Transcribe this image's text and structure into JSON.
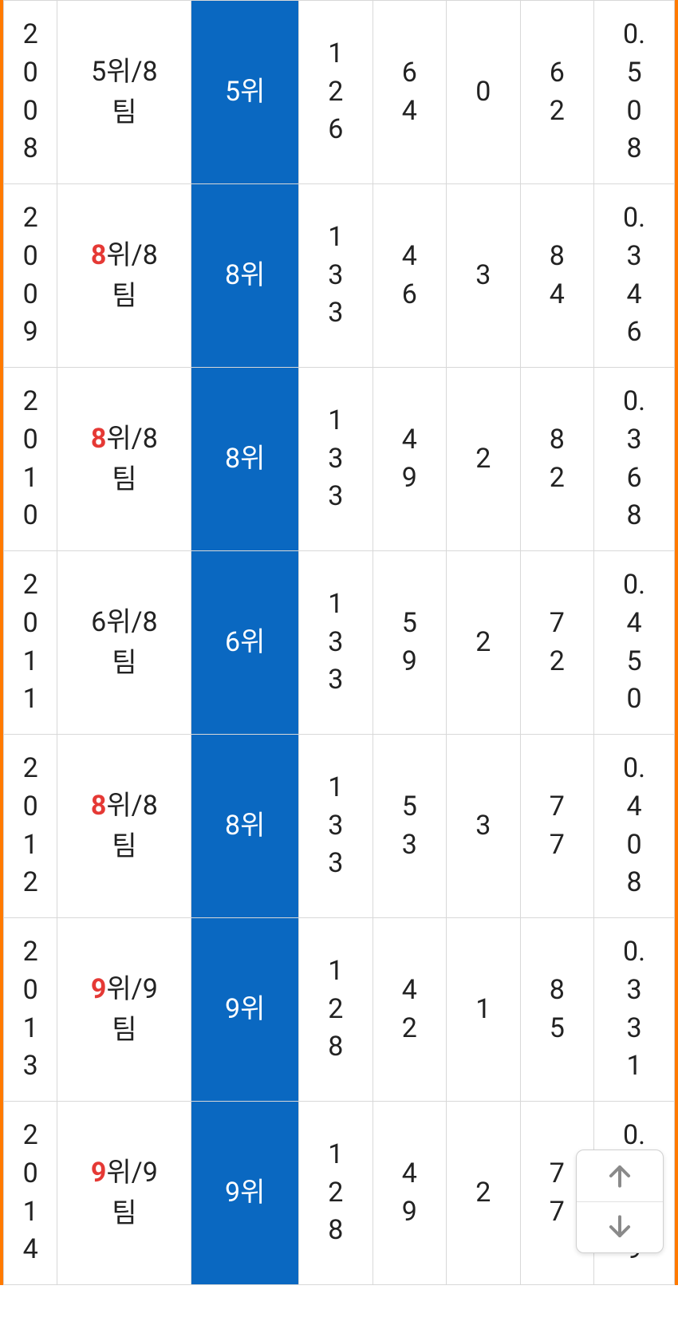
{
  "table": {
    "border_color": "#ff7a00",
    "rank_bg": "#0a68c1",
    "highlight_color": "#e53935",
    "rows": [
      {
        "year": "2008",
        "standing_prefix": "5",
        "standing_highlight": false,
        "standing_suffix": "위/8팀",
        "rank": "5위",
        "games": "126",
        "wins": "64",
        "ties": "0",
        "losses": "62",
        "pct": "0.508"
      },
      {
        "year": "2009",
        "standing_prefix": "8",
        "standing_highlight": true,
        "standing_suffix": "위/8팀",
        "rank": "8위",
        "games": "133",
        "wins": "46",
        "ties": "3",
        "losses": "84",
        "pct": "0.346"
      },
      {
        "year": "2010",
        "standing_prefix": "8",
        "standing_highlight": true,
        "standing_suffix": "위/8팀",
        "rank": "8위",
        "games": "133",
        "wins": "49",
        "ties": "2",
        "losses": "82",
        "pct": "0.368"
      },
      {
        "year": "2011",
        "standing_prefix": "6",
        "standing_highlight": false,
        "standing_suffix": "위/8팀",
        "rank": "6위",
        "games": "133",
        "wins": "59",
        "ties": "2",
        "losses": "72",
        "pct": "0.450"
      },
      {
        "year": "2012",
        "standing_prefix": "8",
        "standing_highlight": true,
        "standing_suffix": "위/8팀",
        "rank": "8위",
        "games": "133",
        "wins": "53",
        "ties": "3",
        "losses": "77",
        "pct": "0.408"
      },
      {
        "year": "2013",
        "standing_prefix": "9",
        "standing_highlight": true,
        "standing_suffix": "위/9팀",
        "rank": "9위",
        "games": "128",
        "wins": "42",
        "ties": "1",
        "losses": "85",
        "pct": "0.331"
      },
      {
        "year": "2014",
        "standing_prefix": "9",
        "standing_highlight": true,
        "standing_suffix": "위/9팀",
        "rank": "9위",
        "games": "128",
        "wins": "49",
        "ties": "2",
        "losses": "77",
        "pct": "0.389"
      }
    ]
  },
  "scroll_widget": {
    "up_icon": "arrow-up",
    "down_icon": "arrow-down",
    "icon_color": "#8a8a8a"
  }
}
